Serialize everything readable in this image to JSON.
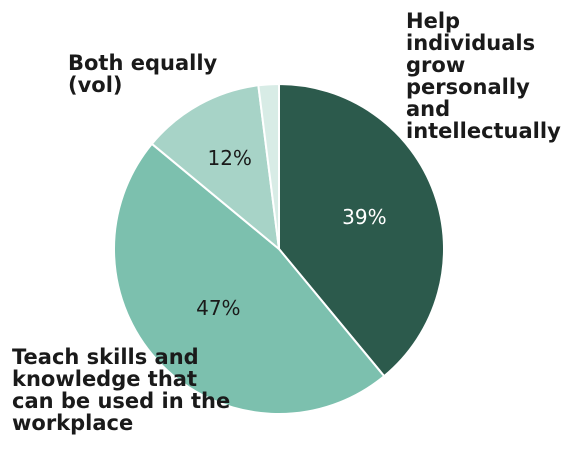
{
  "chart_data": {
    "type": "pie",
    "title": "",
    "slices": [
      {
        "label": "Help individuals grow personally and intellectually",
        "value": 39,
        "value_label": "39%",
        "color": "#2c5a4c",
        "text_color": "#ffffff"
      },
      {
        "label": "Teach skills and knowledge that can be used in the workplace",
        "value": 47,
        "value_label": "47%",
        "color": "#7cc0ae",
        "text_color": "#1a1a1a"
      },
      {
        "label": "Both equally (vol)",
        "value": 12,
        "value_label": "12%",
        "color": "#a7d3c7",
        "text_color": "#1a1a1a"
      },
      {
        "label": "",
        "value": 2,
        "value_label": "",
        "color": "#d8ece6",
        "text_color": "#1a1a1a"
      }
    ],
    "start_angle_deg": 0,
    "direction": "clockwise",
    "legend": "none (direct labels)"
  },
  "labels": {
    "help": "Help\nindividuals\ngrow\npersonally\nand\nintellectually",
    "both": "Both equally\n(vol)",
    "teach": "Teach skills and\nknowledge that\ncan be used in the\nworkplace"
  }
}
